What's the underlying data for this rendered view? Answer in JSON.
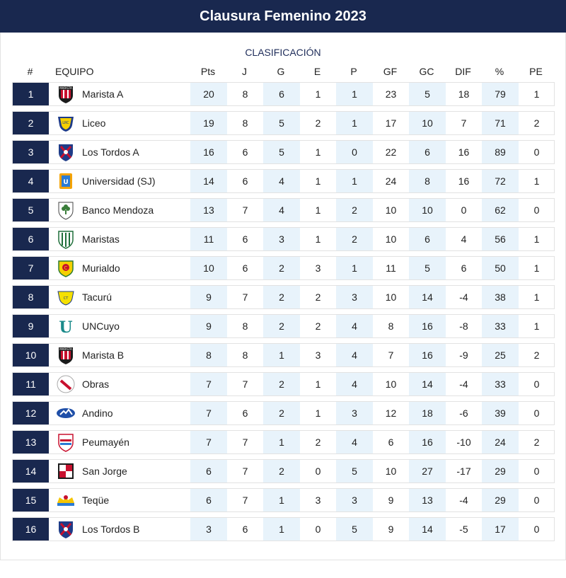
{
  "header": {
    "title": "Clausura Femenino 2023"
  },
  "table": {
    "subtitle": "CLASIFICACIÓN",
    "columns": {
      "pos": "#",
      "team": "EQUIPO",
      "pts": "Pts",
      "j": "J",
      "g": "G",
      "e": "E",
      "p": "P",
      "gf": "GF",
      "gc": "GC",
      "dif": "DIF",
      "pct": "%",
      "pe": "PE"
    },
    "rows": [
      {
        "pos": "1",
        "team": "Marista A",
        "logo": "marista-logo",
        "pts": "20",
        "j": "8",
        "g": "6",
        "e": "1",
        "p": "1",
        "gf": "23",
        "gc": "5",
        "dif": "18",
        "pct": "79",
        "pe": "1"
      },
      {
        "pos": "2",
        "team": "Liceo",
        "logo": "liceo-logo",
        "pts": "19",
        "j": "8",
        "g": "5",
        "e": "2",
        "p": "1",
        "gf": "17",
        "gc": "10",
        "dif": "7",
        "pct": "71",
        "pe": "2"
      },
      {
        "pos": "3",
        "team": "Los Tordos A",
        "logo": "tordos-logo",
        "pts": "16",
        "j": "6",
        "g": "5",
        "e": "1",
        "p": "0",
        "gf": "22",
        "gc": "6",
        "dif": "16",
        "pct": "89",
        "pe": "0"
      },
      {
        "pos": "4",
        "team": "Universidad (SJ)",
        "logo": "universidad-logo",
        "pts": "14",
        "j": "6",
        "g": "4",
        "e": "1",
        "p": "1",
        "gf": "24",
        "gc": "8",
        "dif": "16",
        "pct": "72",
        "pe": "1"
      },
      {
        "pos": "5",
        "team": "Banco Mendoza",
        "logo": "banco-logo",
        "pts": "13",
        "j": "7",
        "g": "4",
        "e": "1",
        "p": "2",
        "gf": "10",
        "gc": "10",
        "dif": "0",
        "pct": "62",
        "pe": "0"
      },
      {
        "pos": "6",
        "team": "Maristas",
        "logo": "maristas-logo",
        "pts": "11",
        "j": "6",
        "g": "3",
        "e": "1",
        "p": "2",
        "gf": "10",
        "gc": "6",
        "dif": "4",
        "pct": "56",
        "pe": "1"
      },
      {
        "pos": "7",
        "team": "Murialdo",
        "logo": "murialdo-logo",
        "pts": "10",
        "j": "6",
        "g": "2",
        "e": "3",
        "p": "1",
        "gf": "11",
        "gc": "5",
        "dif": "6",
        "pct": "50",
        "pe": "1"
      },
      {
        "pos": "8",
        "team": "Tacurú",
        "logo": "tacuru-logo",
        "pts": "9",
        "j": "7",
        "g": "2",
        "e": "2",
        "p": "3",
        "gf": "10",
        "gc": "14",
        "dif": "-4",
        "pct": "38",
        "pe": "1"
      },
      {
        "pos": "9",
        "team": "UNCuyo",
        "logo": "uncuyo-logo",
        "pts": "9",
        "j": "8",
        "g": "2",
        "e": "2",
        "p": "4",
        "gf": "8",
        "gc": "16",
        "dif": "-8",
        "pct": "33",
        "pe": "1"
      },
      {
        "pos": "10",
        "team": "Marista B",
        "logo": "marista-logo",
        "pts": "8",
        "j": "8",
        "g": "1",
        "e": "3",
        "p": "4",
        "gf": "7",
        "gc": "16",
        "dif": "-9",
        "pct": "25",
        "pe": "2"
      },
      {
        "pos": "11",
        "team": "Obras",
        "logo": "obras-logo",
        "pts": "7",
        "j": "7",
        "g": "2",
        "e": "1",
        "p": "4",
        "gf": "10",
        "gc": "14",
        "dif": "-4",
        "pct": "33",
        "pe": "0"
      },
      {
        "pos": "12",
        "team": "Andino",
        "logo": "andino-logo",
        "pts": "7",
        "j": "6",
        "g": "2",
        "e": "1",
        "p": "3",
        "gf": "12",
        "gc": "18",
        "dif": "-6",
        "pct": "39",
        "pe": "0"
      },
      {
        "pos": "13",
        "team": "Peumayén",
        "logo": "peumayen-logo",
        "pts": "7",
        "j": "7",
        "g": "1",
        "e": "2",
        "p": "4",
        "gf": "6",
        "gc": "16",
        "dif": "-10",
        "pct": "24",
        "pe": "2"
      },
      {
        "pos": "14",
        "team": "San Jorge",
        "logo": "sanjorge-logo",
        "pts": "6",
        "j": "7",
        "g": "2",
        "e": "0",
        "p": "5",
        "gf": "10",
        "gc": "27",
        "dif": "-17",
        "pct": "29",
        "pe": "0"
      },
      {
        "pos": "15",
        "team": "Teqüe",
        "logo": "teque-logo",
        "pts": "6",
        "j": "7",
        "g": "1",
        "e": "3",
        "p": "3",
        "gf": "9",
        "gc": "13",
        "dif": "-4",
        "pct": "29",
        "pe": "0"
      },
      {
        "pos": "16",
        "team": "Los Tordos B",
        "logo": "tordos-logo",
        "pts": "3",
        "j": "6",
        "g": "1",
        "e": "0",
        "p": "5",
        "gf": "9",
        "gc": "14",
        "dif": "-5",
        "pct": "17",
        "pe": "0"
      }
    ]
  },
  "colors": {
    "header_bg": "#19284f",
    "position_bg": "#19284f",
    "shaded_column": "#e8f3fb",
    "border": "#e2e2e2"
  }
}
